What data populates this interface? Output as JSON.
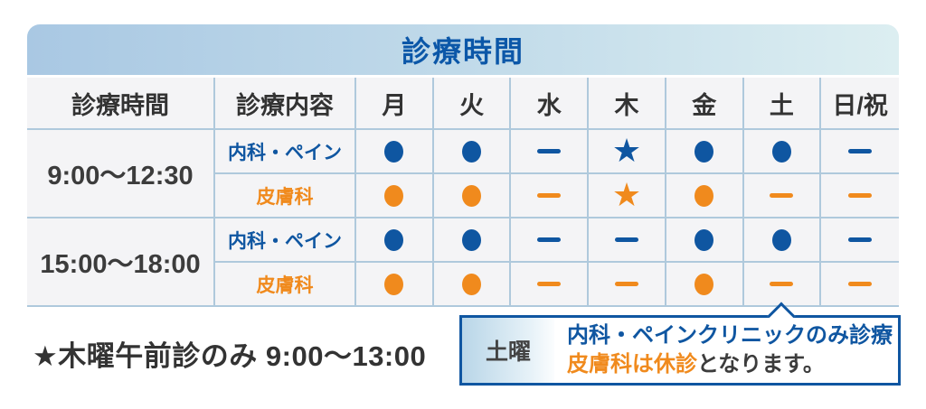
{
  "title": "診療時間",
  "table": {
    "headers": [
      "診療時間",
      "診療内容",
      "月",
      "火",
      "水",
      "木",
      "金",
      "土",
      "日/祝"
    ],
    "row_groups": [
      {
        "time": "9:00〜12:30",
        "rows": [
          {
            "dept": "内科・ペイン",
            "color": "blue",
            "marks": [
              "dot",
              "dot",
              "dash",
              "star",
              "dot",
              "dot",
              "dash"
            ]
          },
          {
            "dept": "皮膚科",
            "color": "orange",
            "marks": [
              "dot",
              "dot",
              "dash",
              "star",
              "dot",
              "dash",
              "dash"
            ]
          }
        ]
      },
      {
        "time": "15:00〜18:00",
        "rows": [
          {
            "dept": "内科・ペイン",
            "color": "blue",
            "marks": [
              "dot",
              "dot",
              "dash",
              "dash",
              "dot",
              "dot",
              "dash"
            ]
          },
          {
            "dept": "皮膚科",
            "color": "orange",
            "marks": [
              "dot",
              "dot",
              "dash",
              "dash",
              "dot",
              "dash",
              "dash"
            ]
          }
        ]
      }
    ],
    "symbols": {
      "dot": "●",
      "dash": "―",
      "star": "★"
    }
  },
  "footnote": "★木曜午前診のみ 9:00〜13:00",
  "saturday_callout": {
    "label": "土曜",
    "line1": "内科・ペインクリニックのみ診療",
    "line2_highlight": "皮膚科は休診",
    "line2_rest": "となります。"
  },
  "colors": {
    "blue": "#0f56a1",
    "orange": "#f08a1d",
    "dark_text": "#333333",
    "title_text": "#0b57a8",
    "header_gradient_start": "#a9c8e3",
    "header_gradient_end": "#dceef1",
    "grid_border": "#afc9dc",
    "cell_background": "#f4f4f6",
    "callout_border": "#0f56a1"
  }
}
